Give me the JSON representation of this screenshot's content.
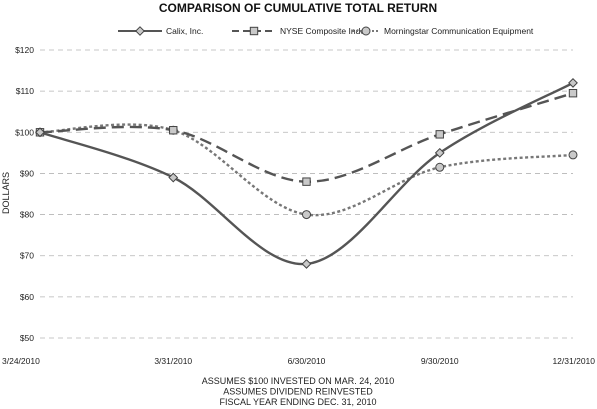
{
  "chart_data": {
    "type": "line",
    "title": "COMPARISON OF CUMULATIVE TOTAL RETURN",
    "ylabel": "DOLLARS",
    "xlabel": "",
    "categories": [
      "3/24/2010",
      "3/31/2010",
      "6/30/2010",
      "9/30/2010",
      "12/31/2010"
    ],
    "yticks": [
      "$50",
      "$60",
      "$70",
      "$80",
      "$90",
      "$100",
      "$110",
      "$120"
    ],
    "ylim": [
      50,
      120
    ],
    "grid": true,
    "legend_position": "top",
    "series": [
      {
        "name": "Calix, Inc.",
        "values": [
          100,
          89,
          68,
          95,
          112
        ],
        "marker": "diamond",
        "dash": "solid",
        "color": "#555555"
      },
      {
        "name": "NYSE Composite Index",
        "values": [
          100,
          100.5,
          88,
          99.5,
          109.5
        ],
        "marker": "square",
        "dash": "long-dash",
        "color": "#555555"
      },
      {
        "name": "Morningstar Communication Equipment",
        "values": [
          100,
          100.5,
          80,
          91.5,
          94.5
        ],
        "marker": "circle",
        "dash": "dotted",
        "color": "#777777"
      }
    ],
    "footnotes": [
      "ASSUMES $100 INVESTED ON MAR. 24, 2010",
      "ASSUMES DIVIDEND REINVESTED",
      "FISCAL YEAR ENDING DEC. 31, 2010"
    ]
  }
}
